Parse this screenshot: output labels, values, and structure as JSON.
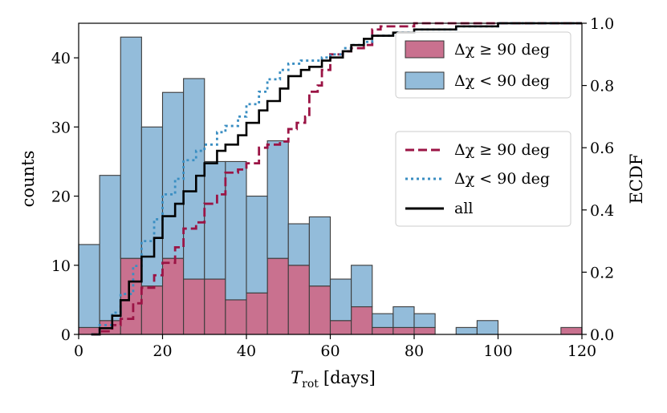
{
  "chart_data": {
    "type": "bar",
    "xlabel_main": "T",
    "xlabel_sub": "rot",
    "xlabel_unit": "[days]",
    "ylabel": "counts",
    "ylabel_right": "ECDF",
    "xlim": [
      0,
      120
    ],
    "ylim": [
      0,
      45
    ],
    "ylim_right": [
      0,
      1
    ],
    "xticks": [
      0,
      20,
      40,
      60,
      80,
      100,
      120
    ],
    "yticks": [
      0,
      10,
      20,
      30,
      40
    ],
    "yticks_right": [
      "0.0",
      "0.2",
      "0.4",
      "0.6",
      "0.8",
      "1.0"
    ],
    "bin_width": 5,
    "bin_starts": [
      0,
      5,
      10,
      15,
      20,
      25,
      30,
      35,
      40,
      45,
      50,
      55,
      60,
      65,
      70,
      75,
      80,
      85,
      90,
      95,
      100,
      105,
      110,
      115
    ],
    "series": [
      {
        "name": "Δχ ≥ 90 deg",
        "kind": "hist",
        "color": "#c9718f",
        "values": [
          1,
          2,
          11,
          7,
          11,
          8,
          8,
          5,
          6,
          11,
          10,
          7,
          2,
          4,
          1,
          1,
          1,
          0,
          0,
          0,
          0,
          0,
          0,
          1
        ]
      },
      {
        "name": "Δχ < 90 deg",
        "kind": "hist",
        "color": "#93bcda",
        "values": [
          12,
          21,
          32,
          23,
          24,
          29,
          17,
          20,
          14,
          17,
          6,
          10,
          6,
          6,
          2,
          3,
          2,
          0,
          1,
          2,
          0,
          0,
          0,
          0
        ]
      }
    ],
    "ecdf_series": [
      {
        "name": "Δχ ≥ 90 deg",
        "style": "dashed",
        "color": "#9b1445",
        "x": [
          3,
          5,
          8,
          10,
          13,
          15,
          18,
          20,
          23,
          25,
          28,
          30,
          33,
          35,
          38,
          40,
          43,
          45,
          48,
          50,
          52,
          54,
          55,
          57,
          58,
          60,
          63,
          65,
          68,
          70,
          72,
          75,
          80,
          90,
          100,
          110,
          120
        ],
        "y": [
          0.0,
          0.01,
          0.03,
          0.05,
          0.1,
          0.15,
          0.19,
          0.23,
          0.28,
          0.34,
          0.36,
          0.42,
          0.45,
          0.52,
          0.53,
          0.55,
          0.6,
          0.61,
          0.62,
          0.66,
          0.68,
          0.7,
          0.78,
          0.8,
          0.85,
          0.9,
          0.91,
          0.92,
          0.93,
          0.98,
          0.99,
          0.99,
          1.0,
          1.0,
          1.0,
          1.0,
          1.0
        ]
      },
      {
        "name": "Δχ < 90 deg",
        "style": "dotted",
        "color": "#3a8ec2",
        "x": [
          3,
          5,
          8,
          10,
          13,
          15,
          18,
          20,
          23,
          25,
          28,
          30,
          33,
          35,
          38,
          40,
          43,
          45,
          48,
          50,
          53,
          55,
          58,
          60,
          63,
          65,
          68,
          70,
          75,
          80,
          90,
          100,
          120
        ],
        "y": [
          0.0,
          0.03,
          0.07,
          0.13,
          0.22,
          0.3,
          0.37,
          0.45,
          0.5,
          0.56,
          0.59,
          0.61,
          0.65,
          0.67,
          0.7,
          0.74,
          0.78,
          0.82,
          0.85,
          0.87,
          0.88,
          0.88,
          0.89,
          0.9,
          0.92,
          0.93,
          0.94,
          0.96,
          0.97,
          0.98,
          0.99,
          1.0,
          1.0
        ]
      },
      {
        "name": "all",
        "style": "solid",
        "color": "#000000",
        "x": [
          3,
          5,
          8,
          10,
          12,
          15,
          18,
          20,
          23,
          25,
          28,
          30,
          33,
          35,
          38,
          40,
          43,
          45,
          48,
          50,
          53,
          55,
          58,
          60,
          63,
          65,
          68,
          70,
          75,
          80,
          90,
          100,
          120
        ],
        "y": [
          0.0,
          0.02,
          0.06,
          0.11,
          0.17,
          0.25,
          0.31,
          0.38,
          0.42,
          0.46,
          0.51,
          0.55,
          0.59,
          0.61,
          0.64,
          0.68,
          0.72,
          0.75,
          0.79,
          0.83,
          0.85,
          0.86,
          0.88,
          0.89,
          0.91,
          0.93,
          0.95,
          0.96,
          0.97,
          0.98,
          0.99,
          1.0,
          1.0
        ]
      }
    ],
    "legend1": {
      "position": "top-right",
      "entries": [
        "Δχ ≥ 90 deg",
        "Δχ < 90 deg"
      ]
    },
    "legend2": {
      "position": "center-right",
      "entries": [
        "Δχ ≥ 90 deg",
        "Δχ < 90 deg",
        "all"
      ]
    }
  }
}
